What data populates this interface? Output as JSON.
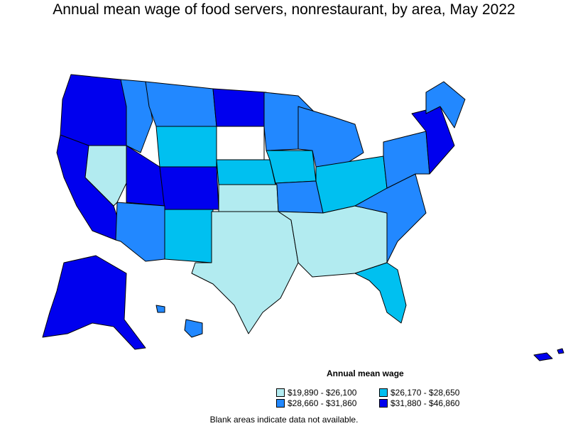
{
  "title": "Annual mean wage of food servers, nonrestaurant, by area, May 2022",
  "legend": {
    "title": "Annual mean wage",
    "items": [
      {
        "label": "$19,890 - $26,100",
        "color": "#b2ebf0"
      },
      {
        "label": "$26,170 - $28,650",
        "color": "#00c0f0"
      },
      {
        "label": "$28,660 - $31,860",
        "color": "#2288ff"
      },
      {
        "label": "$31,880 - $46,860",
        "color": "#0000ee"
      }
    ]
  },
  "note": "Blank areas indicate data not available."
}
